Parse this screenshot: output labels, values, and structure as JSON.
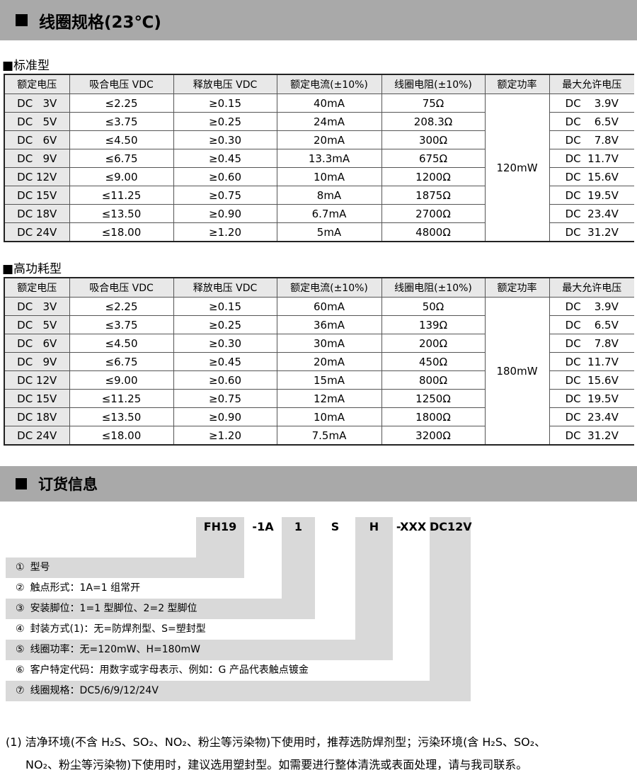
{
  "colors": {
    "banner_bg": "#a9a9a9",
    "table_header_bg": "#e8e8e8",
    "order_bar_bg": "#d9d9d9"
  },
  "banners": {
    "coil_spec": "线圈规格(23℃)",
    "ordering": "订货信息"
  },
  "tables": [
    {
      "label": "■标准型",
      "headers": [
        "额定电压",
        "吸合电压 VDC",
        "释放电压 VDC",
        "额定电流(±10%)",
        "线圈电阻(±10%)",
        "额定功率",
        "最大允许电压"
      ],
      "power": "120mW",
      "rows": [
        [
          "DC   3V",
          "≤2.25",
          "≥0.15",
          "40mA",
          "75Ω",
          "DC    3.9V"
        ],
        [
          "DC   5V",
          "≤3.75",
          "≥0.25",
          "24mA",
          "208.3Ω",
          "DC    6.5V"
        ],
        [
          "DC   6V",
          "≤4.50",
          "≥0.30",
          "20mA",
          "300Ω",
          "DC    7.8V"
        ],
        [
          "DC   9V",
          "≤6.75",
          "≥0.45",
          "13.3mA",
          "675Ω",
          "DC  11.7V"
        ],
        [
          "DC 12V",
          "≤9.00",
          "≥0.60",
          "10mA",
          "1200Ω",
          "DC  15.6V"
        ],
        [
          "DC 15V",
          "≤11.25",
          "≥0.75",
          "8mA",
          "1875Ω",
          "DC  19.5V"
        ],
        [
          "DC 18V",
          "≤13.50",
          "≥0.90",
          "6.7mA",
          "2700Ω",
          "DC  23.4V"
        ],
        [
          "DC 24V",
          "≤18.00",
          "≥1.20",
          "5mA",
          "4800Ω",
          "DC  31.2V"
        ]
      ]
    },
    {
      "label": "■高功耗型",
      "headers": [
        "额定电压",
        "吸合电压 VDC",
        "释放电压 VDC",
        "额定电流(±10%)",
        "线圈电阻(±10%)",
        "额定功率",
        "最大允许电压"
      ],
      "power": "180mW",
      "rows": [
        [
          "DC   3V",
          "≤2.25",
          "≥0.15",
          "60mA",
          "50Ω",
          "DC    3.9V"
        ],
        [
          "DC   5V",
          "≤3.75",
          "≥0.25",
          "36mA",
          "139Ω",
          "DC    6.5V"
        ],
        [
          "DC   6V",
          "≤4.50",
          "≥0.30",
          "30mA",
          "200Ω",
          "DC    7.8V"
        ],
        [
          "DC   9V",
          "≤6.75",
          "≥0.45",
          "20mA",
          "450Ω",
          "DC  11.7V"
        ],
        [
          "DC 12V",
          "≤9.00",
          "≥0.60",
          "15mA",
          "800Ω",
          "DC  15.6V"
        ],
        [
          "DC 15V",
          "≤11.25",
          "≥0.75",
          "12mA",
          "1250Ω",
          "DC  19.5V"
        ],
        [
          "DC 18V",
          "≤13.50",
          "≥0.90",
          "10mA",
          "1800Ω",
          "DC  23.4V"
        ],
        [
          "DC 24V",
          "≤18.00",
          "≥1.20",
          "7.5mA",
          "3200Ω",
          "DC  31.2V"
        ]
      ]
    }
  ],
  "ordering": {
    "code_segments": [
      {
        "text": "FH19",
        "shaded": true
      },
      {
        "text": "-1A",
        "shaded": false
      },
      {
        "text": "1",
        "shaded": true
      },
      {
        "text": "S",
        "shaded": false
      },
      {
        "text": "H",
        "shaded": true
      },
      {
        "text": "-XXX",
        "shaded": false
      },
      {
        "text": "DC12V",
        "shaded": true
      }
    ],
    "rows": [
      {
        "num": "①",
        "text": "型号"
      },
      {
        "num": "②",
        "text": "触点形式：1A=1 组常开"
      },
      {
        "num": "③",
        "text": "安装脚位：1=1 型脚位、2=2 型脚位"
      },
      {
        "num": "④",
        "text": "封装方式(1)：无=防焊剂型、S=塑封型"
      },
      {
        "num": "⑤",
        "text": "线圈功率：无=120mW、H=180mW"
      },
      {
        "num": "⑥",
        "text": "客户特定代码：用数字或字母表示、例如：G 产品代表触点镀金"
      },
      {
        "num": "⑦",
        "text": "线圈规格：DC5/6/9/12/24V"
      }
    ]
  },
  "footnote": {
    "line1": "(1) 洁净环境(不含 H₂S、SO₂、NO₂、粉尘等污染物)下使用时，推荐选防焊剂型；污染环境(含 H₂S、SO₂、",
    "line2": "NO₂、粉尘等污染物)下使用时，建议选用塑封型。如需要进行整体清洗或表面处理，请与我司联系。"
  }
}
